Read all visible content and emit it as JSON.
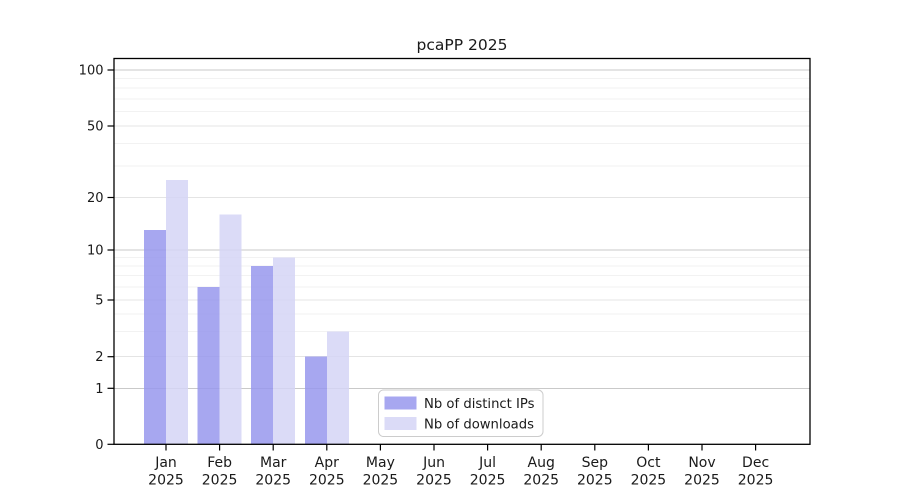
{
  "chart_data": {
    "type": "bar",
    "title": "pcaPP 2025",
    "categories": [
      "Jan",
      "Feb",
      "Mar",
      "Apr",
      "May",
      "Jun",
      "Jul",
      "Aug",
      "Sep",
      "Oct",
      "Nov",
      "Dec"
    ],
    "category_year": "2025",
    "series": [
      {
        "name": "Nb of distinct IPs",
        "color": "#9898ed",
        "display_color": "#a7a7f0",
        "values": [
          13,
          6,
          8,
          2,
          null,
          null,
          null,
          null,
          null,
          null,
          null,
          null
        ]
      },
      {
        "name": "Nb of downloads",
        "color": "#d5d5f6",
        "display_color": "#dbdbf7",
        "values": [
          25,
          16,
          9,
          3,
          null,
          null,
          null,
          null,
          null,
          null,
          null,
          null
        ]
      }
    ],
    "y_axis": {
      "scale": "log-like",
      "ticks": [
        0,
        1,
        2,
        5,
        10,
        20,
        50,
        100
      ],
      "minor_ticks": [
        3,
        4,
        6,
        7,
        8,
        9,
        30,
        40,
        60,
        70,
        80,
        90
      ],
      "range": [
        0,
        100
      ]
    },
    "x_axis": {
      "label_line1": "month",
      "label_line2": "year"
    },
    "legend": {
      "position": "inside-bottom-center",
      "entries": [
        "Nb of distinct IPs",
        "Nb of downloads"
      ]
    },
    "grid": true
  },
  "colors": {
    "background": "#ffffff",
    "axis": "#000000",
    "text": "#1a1a1a",
    "grid_decade": "#c9c9c9",
    "grid_major": "#e4e4e4",
    "grid_minor": "#f2f2f2",
    "legend_border": "#cccccc",
    "legend_fill": "#ffffff"
  }
}
